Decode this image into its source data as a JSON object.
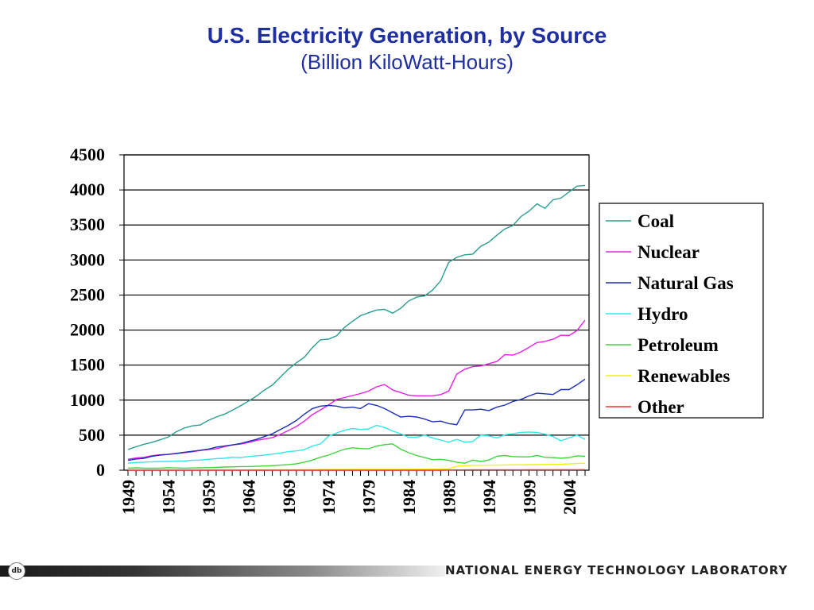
{
  "slide": {
    "title": "U.S. Electricity Generation, by Source",
    "subtitle": "(Billion KiloWatt-Hours)",
    "footer_org": "NATIONAL ENERGY TECHNOLOGY LABORATORY",
    "logo_label": "db"
  },
  "chart_data": {
    "type": "line",
    "title": "U.S. Electricity Generation, by Source",
    "subtitle": "(Billion KiloWatt-Hours)",
    "xlabel": "",
    "ylabel": "",
    "ylim": [
      0,
      4500
    ],
    "yticks": [
      0,
      500,
      1000,
      1500,
      2000,
      2500,
      3000,
      3500,
      4000,
      4500
    ],
    "xticks": [
      1949,
      1954,
      1959,
      1964,
      1969,
      1974,
      1979,
      1984,
      1989,
      1994,
      1999,
      2004
    ],
    "grid": "horizontal",
    "legend": "right",
    "x": [
      1949,
      1950,
      1951,
      1952,
      1953,
      1954,
      1955,
      1956,
      1957,
      1958,
      1959,
      1960,
      1961,
      1962,
      1963,
      1964,
      1965,
      1966,
      1967,
      1968,
      1969,
      1970,
      1971,
      1972,
      1973,
      1974,
      1975,
      1976,
      1977,
      1978,
      1979,
      1980,
      1981,
      1982,
      1983,
      1984,
      1985,
      1986,
      1987,
      1988,
      1989,
      1990,
      1991,
      1992,
      1993,
      1994,
      1995,
      1996,
      1997,
      1998,
      1999,
      2000,
      2001,
      2002,
      2003,
      2004,
      2005,
      2006
    ],
    "series": [
      {
        "name": "Coal",
        "color": "#2a9d8f",
        "values": [
          296,
          334,
          371,
          398,
          434,
          472,
          547,
          601,
          632,
          645,
          710,
          759,
          798,
          855,
          917,
          984,
          1055,
          1144,
          1214,
          1329,
          1442,
          1532,
          1613,
          1750,
          1861,
          1870,
          1918,
          2038,
          2124,
          2206,
          2247,
          2286,
          2295,
          2241,
          2310,
          2416,
          2470,
          2487,
          2572,
          2704,
          2967,
          3038,
          3074,
          3084,
          3197,
          3254,
          3353,
          3444,
          3492,
          3620,
          3695,
          3802,
          3737,
          3858,
          3883,
          3971,
          4055,
          4065
        ]
      },
      {
        "name": "Nuclear",
        "color": "#e81ee8",
        "values": [
          156,
          175,
          185,
          207,
          220,
          225,
          236,
          250,
          263,
          281,
          296,
          305,
          335,
          360,
          372,
          394,
          424,
          446,
          466,
          511,
          567,
          623,
          700,
          795,
          860,
          930,
          1010,
          1037,
          1065,
          1094,
          1129,
          1190,
          1223,
          1145,
          1109,
          1070,
          1062,
          1062,
          1063,
          1079,
          1130,
          1372,
          1442,
          1478,
          1487,
          1520,
          1552,
          1649,
          1642,
          1688,
          1754,
          1821,
          1839,
          1869,
          1927,
          1921,
          1994,
          2142
        ]
      },
      {
        "name": "Natural Gas",
        "color": "#1c2fb5",
        "values": [
          140,
          160,
          170,
          200,
          215,
          225,
          240,
          255,
          270,
          285,
          300,
          330,
          345,
          360,
          380,
          410,
          440,
          480,
          520,
          580,
          640,
          710,
          800,
          880,
          915,
          925,
          915,
          890,
          900,
          880,
          950,
          925,
          880,
          820,
          760,
          770,
          760,
          730,
          690,
          700,
          665,
          650,
          860,
          860,
          870,
          850,
          900,
          930,
          980,
          1010,
          1060,
          1100,
          1090,
          1080,
          1150,
          1150,
          1220,
          1300
        ]
      },
      {
        "name": "Hydro",
        "color": "#33e6ea",
        "values": [
          100,
          110,
          115,
          120,
          125,
          125,
          130,
          130,
          140,
          145,
          155,
          165,
          170,
          185,
          180,
          195,
          205,
          215,
          230,
          245,
          265,
          275,
          295,
          345,
          375,
          485,
          530,
          570,
          595,
          580,
          590,
          640,
          610,
          560,
          520,
          470,
          470,
          500,
          460,
          430,
          400,
          440,
          400,
          410,
          500,
          490,
          460,
          505,
          520,
          540,
          545,
          540,
          515,
          480,
          420,
          460,
          500,
          440
        ]
      },
      {
        "name": "Petroleum",
        "color": "#3fd43f",
        "values": [
          30,
          34,
          30,
          28,
          30,
          36,
          32,
          30,
          32,
          34,
          36,
          40,
          45,
          48,
          52,
          52,
          55,
          60,
          65,
          73,
          80,
          92,
          115,
          145,
          185,
          215,
          260,
          300,
          320,
          310,
          305,
          345,
          365,
          375,
          300,
          250,
          210,
          180,
          150,
          155,
          140,
          115,
          100,
          145,
          125,
          145,
          200,
          210,
          195,
          190,
          190,
          210,
          185,
          180,
          170,
          180,
          205,
          200
        ]
      },
      {
        "name": "Renewables",
        "color": "#f2f20a",
        "values": [
          5,
          5,
          5,
          5,
          5,
          5,
          5,
          5,
          5,
          5,
          5,
          5,
          5,
          5,
          5,
          5,
          6,
          6,
          6,
          6,
          7,
          7,
          8,
          8,
          9,
          9,
          10,
          10,
          11,
          11,
          12,
          12,
          12,
          13,
          13,
          14,
          15,
          16,
          17,
          18,
          20,
          55,
          65,
          70,
          70,
          72,
          73,
          75,
          77,
          77,
          79,
          80,
          82,
          84,
          85,
          90,
          95,
          100
        ]
      },
      {
        "name": "Other",
        "color": "#f03232",
        "values": [
          0,
          0,
          0,
          0,
          0,
          0,
          0,
          0,
          0,
          0,
          0,
          0,
          0,
          0,
          0,
          0,
          0,
          0,
          0,
          0,
          0,
          0,
          0,
          0,
          0,
          0,
          0,
          0,
          0,
          0,
          0,
          0,
          0,
          0,
          0,
          0,
          0,
          0,
          0,
          0,
          2,
          3,
          4,
          4,
          4,
          5,
          5,
          5,
          5,
          5,
          6,
          6,
          6,
          6,
          6,
          7,
          7,
          8
        ]
      }
    ]
  }
}
